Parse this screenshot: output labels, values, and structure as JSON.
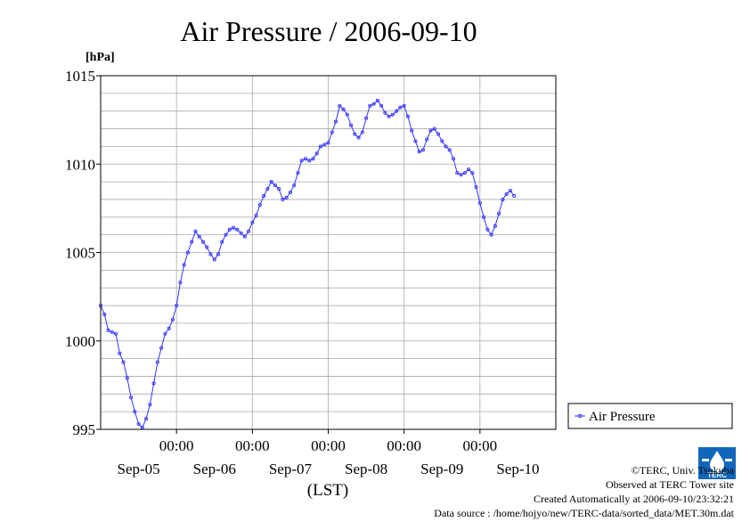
{
  "chart_data": {
    "type": "line",
    "title": "Air Pressure / 2006-09-10",
    "ylabel": "[hPa]",
    "xlabel": "(LST)",
    "ylim": [
      995,
      1015
    ],
    "yticks": [
      995,
      1000,
      1005,
      1010,
      1015
    ],
    "xlim": [
      0,
      6
    ],
    "xticks": [
      {
        "pos": 1,
        "time": "00:00",
        "day": "Sep-05"
      },
      {
        "pos": 2,
        "time": "00:00",
        "day": "Sep-06"
      },
      {
        "pos": 3,
        "time": "00:00",
        "day": "Sep-07"
      },
      {
        "pos": 4,
        "time": "00:00",
        "day": "Sep-08"
      },
      {
        "pos": 5,
        "time": "00:00",
        "day": "Sep-09"
      }
    ],
    "day_label_offset": 0.5,
    "last_day_label": {
      "pos": 5.5,
      "day": "Sep-10"
    },
    "grid": true,
    "legend_position": "right",
    "series_color": "#3333ff",
    "series": [
      {
        "name": "Air Pressure",
        "points": [
          [
            0.0,
            1002.0
          ],
          [
            0.05,
            1001.5
          ],
          [
            0.1,
            1000.6
          ],
          [
            0.15,
            1000.5
          ],
          [
            0.2,
            1000.4
          ],
          [
            0.25,
            999.3
          ],
          [
            0.3,
            998.8
          ],
          [
            0.35,
            997.9
          ],
          [
            0.4,
            996.8
          ],
          [
            0.45,
            996.0
          ],
          [
            0.5,
            995.3
          ],
          [
            0.55,
            995.1
          ],
          [
            0.6,
            995.6
          ],
          [
            0.65,
            996.4
          ],
          [
            0.7,
            997.6
          ],
          [
            0.75,
            998.8
          ],
          [
            0.8,
            999.6
          ],
          [
            0.85,
            1000.4
          ],
          [
            0.9,
            1000.7
          ],
          [
            0.95,
            1001.2
          ],
          [
            1.0,
            1002.0
          ],
          [
            1.05,
            1003.3
          ],
          [
            1.1,
            1004.3
          ],
          [
            1.15,
            1005.0
          ],
          [
            1.2,
            1005.6
          ],
          [
            1.25,
            1006.2
          ],
          [
            1.3,
            1005.9
          ],
          [
            1.35,
            1005.6
          ],
          [
            1.4,
            1005.3
          ],
          [
            1.45,
            1004.9
          ],
          [
            1.5,
            1004.6
          ],
          [
            1.55,
            1004.9
          ],
          [
            1.6,
            1005.6
          ],
          [
            1.65,
            1006.0
          ],
          [
            1.7,
            1006.3
          ],
          [
            1.75,
            1006.4
          ],
          [
            1.8,
            1006.3
          ],
          [
            1.85,
            1006.1
          ],
          [
            1.9,
            1005.9
          ],
          [
            1.95,
            1006.2
          ],
          [
            2.0,
            1006.7
          ],
          [
            2.05,
            1007.1
          ],
          [
            2.1,
            1007.7
          ],
          [
            2.15,
            1008.2
          ],
          [
            2.2,
            1008.6
          ],
          [
            2.25,
            1009.0
          ],
          [
            2.3,
            1008.8
          ],
          [
            2.35,
            1008.6
          ],
          [
            2.4,
            1008.0
          ],
          [
            2.45,
            1008.1
          ],
          [
            2.5,
            1008.4
          ],
          [
            2.55,
            1008.8
          ],
          [
            2.6,
            1009.5
          ],
          [
            2.65,
            1010.2
          ],
          [
            2.7,
            1010.3
          ],
          [
            2.75,
            1010.2
          ],
          [
            2.8,
            1010.3
          ],
          [
            2.85,
            1010.6
          ],
          [
            2.9,
            1011.0
          ],
          [
            2.95,
            1011.1
          ],
          [
            3.0,
            1011.2
          ],
          [
            3.05,
            1011.8
          ],
          [
            3.1,
            1012.4
          ],
          [
            3.15,
            1013.3
          ],
          [
            3.2,
            1013.1
          ],
          [
            3.25,
            1012.8
          ],
          [
            3.3,
            1012.2
          ],
          [
            3.35,
            1011.7
          ],
          [
            3.4,
            1011.5
          ],
          [
            3.45,
            1011.8
          ],
          [
            3.5,
            1012.6
          ],
          [
            3.55,
            1013.3
          ],
          [
            3.6,
            1013.4
          ],
          [
            3.65,
            1013.6
          ],
          [
            3.7,
            1013.3
          ],
          [
            3.75,
            1012.9
          ],
          [
            3.8,
            1012.7
          ],
          [
            3.85,
            1012.8
          ],
          [
            3.9,
            1013.0
          ],
          [
            3.95,
            1013.2
          ],
          [
            4.0,
            1013.3
          ],
          [
            4.05,
            1012.7
          ],
          [
            4.1,
            1011.9
          ],
          [
            4.15,
            1011.3
          ],
          [
            4.2,
            1010.7
          ],
          [
            4.25,
            1010.8
          ],
          [
            4.3,
            1011.4
          ],
          [
            4.35,
            1011.9
          ],
          [
            4.4,
            1012.0
          ],
          [
            4.45,
            1011.7
          ],
          [
            4.5,
            1011.3
          ],
          [
            4.55,
            1011.0
          ],
          [
            4.6,
            1010.8
          ],
          [
            4.65,
            1010.3
          ],
          [
            4.7,
            1009.5
          ],
          [
            4.75,
            1009.4
          ],
          [
            4.8,
            1009.5
          ],
          [
            4.85,
            1009.7
          ],
          [
            4.9,
            1009.5
          ],
          [
            4.95,
            1008.7
          ],
          [
            5.0,
            1007.8
          ],
          [
            5.05,
            1007.0
          ],
          [
            5.1,
            1006.3
          ],
          [
            5.15,
            1006.0
          ],
          [
            5.2,
            1006.5
          ],
          [
            5.25,
            1007.2
          ],
          [
            5.3,
            1008.0
          ],
          [
            5.35,
            1008.3
          ],
          [
            5.4,
            1008.5
          ],
          [
            5.45,
            1008.2
          ]
        ]
      }
    ]
  },
  "credits": {
    "copyright": "©TERC, Univ. Tsukuba",
    "observed": "Observed at TERC Tower site",
    "created": "Created Automatically at 2006-09-10/23:32:21",
    "source": "Data source : /home/hojyo/new/TERC-data/sorted_data/MET.30m.dat"
  },
  "logo": {
    "text": "TERC",
    "color": "#1166bb"
  }
}
